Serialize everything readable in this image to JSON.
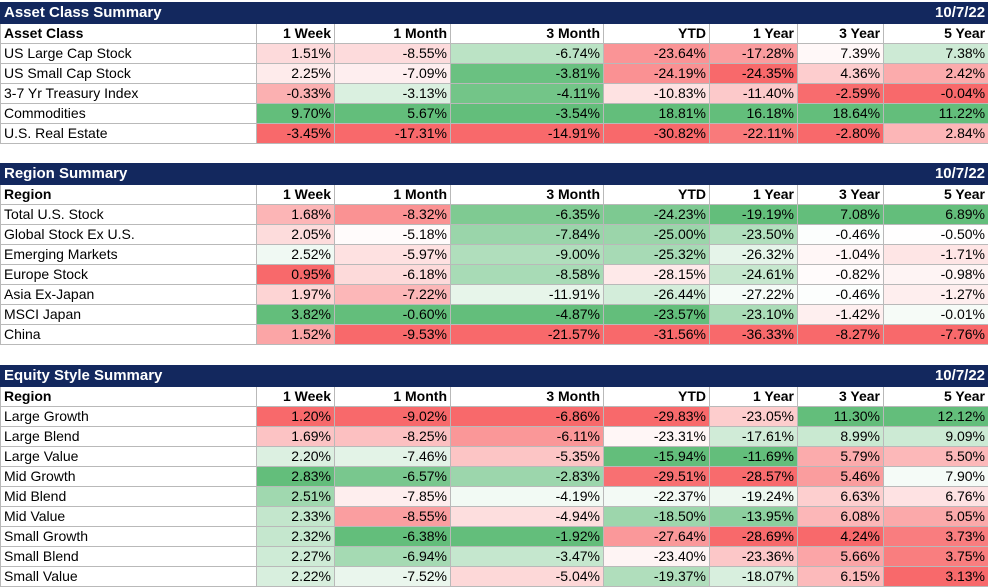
{
  "colors": {
    "title_bg": "#13285e",
    "title_text": "#ffffff",
    "positive_max": "#63be7b",
    "negative_max": "#f8696b",
    "neutral": "#ffffff"
  },
  "sections": [
    {
      "title": "Asset Class Summary",
      "date": "10/7/22",
      "headers": [
        "Asset Class",
        "1 Week",
        "1 Month",
        "3 Month",
        "YTD",
        "1 Year",
        "3 Year",
        "5 Year"
      ],
      "rows": [
        {
          "name": "US Large Cap Stock",
          "values": [
            "1.51%",
            "-8.55%",
            "-6.74%",
            "-23.64%",
            "-17.28%",
            "7.39%",
            "7.38%"
          ]
        },
        {
          "name": "US Small Cap Stock",
          "values": [
            "2.25%",
            "-7.09%",
            "-3.81%",
            "-24.19%",
            "-24.35%",
            "4.36%",
            "2.42%"
          ]
        },
        {
          "name": "3-7 Yr Treasury Index",
          "values": [
            "-0.33%",
            "-3.13%",
            "-4.11%",
            "-10.83%",
            "-11.40%",
            "-2.59%",
            "-0.04%"
          ]
        },
        {
          "name": "Commodities",
          "values": [
            "9.70%",
            "5.67%",
            "-3.54%",
            "18.81%",
            "16.18%",
            "18.64%",
            "11.22%"
          ]
        },
        {
          "name": "U.S. Real Estate",
          "values": [
            "-3.45%",
            "-17.31%",
            "-14.91%",
            "-30.82%",
            "-22.11%",
            "-2.80%",
            "2.84%"
          ]
        }
      ]
    },
    {
      "title": "Region Summary",
      "date": "10/7/22",
      "headers": [
        "Region",
        "1 Week",
        "1 Month",
        "3 Month",
        "YTD",
        "1 Year",
        "3 Year",
        "5 Year"
      ],
      "rows": [
        {
          "name": "Total U.S. Stock",
          "values": [
            "1.68%",
            "-8.32%",
            "-6.35%",
            "-24.23%",
            "-19.19%",
            "7.08%",
            "6.89%"
          ]
        },
        {
          "name": "Global Stock Ex U.S.",
          "values": [
            "2.05%",
            "-5.18%",
            "-7.84%",
            "-25.00%",
            "-23.50%",
            "-0.46%",
            "-0.50%"
          ]
        },
        {
          "name": "Emerging Markets",
          "values": [
            "2.52%",
            "-5.97%",
            "-9.00%",
            "-25.32%",
            "-26.32%",
            "-1.04%",
            "-1.71%"
          ]
        },
        {
          "name": "Europe Stock",
          "values": [
            "0.95%",
            "-6.18%",
            "-8.58%",
            "-28.15%",
            "-24.61%",
            "-0.82%",
            "-0.98%"
          ]
        },
        {
          "name": "Asia Ex-Japan",
          "values": [
            "1.97%",
            "-7.22%",
            "-11.91%",
            "-26.44%",
            "-27.22%",
            "-0.46%",
            "-1.27%"
          ]
        },
        {
          "name": "MSCI Japan",
          "values": [
            "3.82%",
            "-0.60%",
            "-4.87%",
            "-23.57%",
            "-23.10%",
            "-1.42%",
            "-0.01%"
          ]
        },
        {
          "name": "China",
          "values": [
            "1.52%",
            "-9.53%",
            "-21.57%",
            "-31.56%",
            "-36.33%",
            "-8.27%",
            "-7.76%"
          ]
        }
      ]
    },
    {
      "title": "Equity Style Summary",
      "date": "10/7/22",
      "headers": [
        "Region",
        "1 Week",
        "1 Month",
        "3 Month",
        "YTD",
        "1 Year",
        "3 Year",
        "5 Year"
      ],
      "rows": [
        {
          "name": "Large Growth",
          "values": [
            "1.20%",
            "-9.02%",
            "-6.86%",
            "-29.83%",
            "-23.05%",
            "11.30%",
            "12.12%"
          ]
        },
        {
          "name": "Large Blend",
          "values": [
            "1.69%",
            "-8.25%",
            "-6.11%",
            "-23.31%",
            "-17.61%",
            "8.99%",
            "9.09%"
          ]
        },
        {
          "name": "Large Value",
          "values": [
            "2.20%",
            "-7.46%",
            "-5.35%",
            "-15.94%",
            "-11.69%",
            "5.79%",
            "5.50%"
          ]
        },
        {
          "name": "Mid Growth",
          "values": [
            "2.83%",
            "-6.57%",
            "-2.83%",
            "-29.51%",
            "-28.57%",
            "5.46%",
            "7.90%"
          ]
        },
        {
          "name": "Mid Blend",
          "values": [
            "2.51%",
            "-7.85%",
            "-4.19%",
            "-22.37%",
            "-19.24%",
            "6.63%",
            "6.76%"
          ]
        },
        {
          "name": "Mid Value",
          "values": [
            "2.33%",
            "-8.55%",
            "-4.94%",
            "-18.50%",
            "-13.95%",
            "6.08%",
            "5.05%"
          ]
        },
        {
          "name": "Small Growth",
          "values": [
            "2.32%",
            "-6.38%",
            "-1.92%",
            "-27.64%",
            "-28.69%",
            "4.24%",
            "3.73%"
          ]
        },
        {
          "name": "Small Blend",
          "values": [
            "2.27%",
            "-6.94%",
            "-3.47%",
            "-23.40%",
            "-23.36%",
            "5.66%",
            "3.75%"
          ]
        },
        {
          "name": "Small Value",
          "values": [
            "2.22%",
            "-7.52%",
            "-5.04%",
            "-19.37%",
            "-18.07%",
            "6.15%",
            "3.13%"
          ]
        }
      ]
    }
  ]
}
